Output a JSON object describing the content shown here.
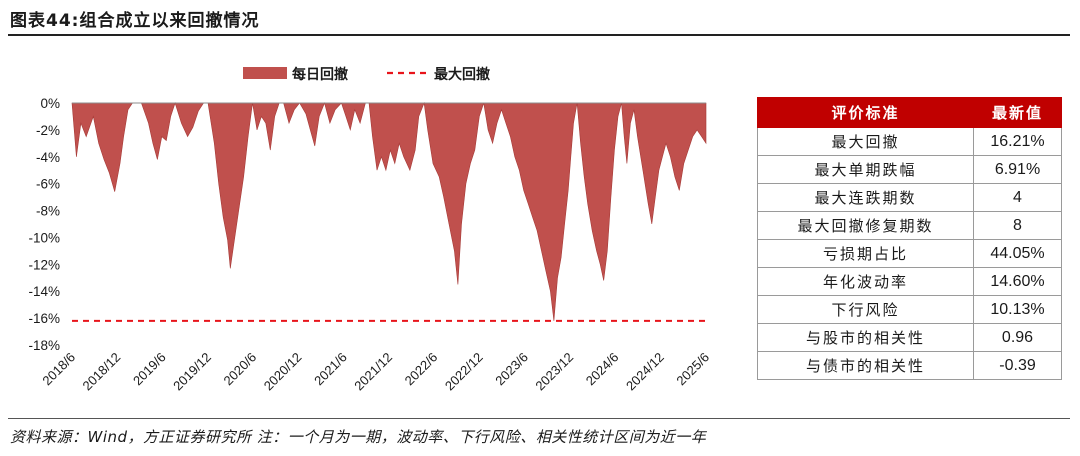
{
  "figure": {
    "title": "图表44:组合成立以来回撤情况",
    "source": "资料来源：Wind，方正证券研究所 注：一个月为一期，波动率、下行风险、相关性统计区间为近一年"
  },
  "chart_data": {
    "type": "area",
    "legend_position": "top",
    "series": [
      {
        "name": "每日回撤",
        "kind": "area",
        "color": "#c0504d"
      },
      {
        "name": "最大回撤",
        "kind": "dashed-line",
        "color": "#e8141b",
        "value": -16.21
      }
    ],
    "x_ticks": [
      "2018/6",
      "2018/12",
      "2019/6",
      "2019/12",
      "2020/6",
      "2020/12",
      "2021/6",
      "2021/12",
      "2022/6",
      "2022/12",
      "2023/6",
      "2023/12",
      "2024/6",
      "2024/12",
      "2025/6"
    ],
    "y_ticks": [
      "0%",
      "-2%",
      "-4%",
      "-6%",
      "-8%",
      "-10%",
      "-12%",
      "-14%",
      "-16%",
      "-18%"
    ],
    "ylim": [
      -18,
      0
    ],
    "x_range": [
      2018.42,
      2025.55
    ],
    "drawdown_points": [
      [
        2018.42,
        0
      ],
      [
        2018.47,
        -4.0
      ],
      [
        2018.52,
        -1.5
      ],
      [
        2018.58,
        -2.5
      ],
      [
        2018.66,
        -1.0
      ],
      [
        2018.72,
        -3.0
      ],
      [
        2018.78,
        -4.2
      ],
      [
        2018.84,
        -5.2
      ],
      [
        2018.9,
        -6.6
      ],
      [
        2018.96,
        -4.5
      ],
      [
        2019.0,
        -2.5
      ],
      [
        2019.05,
        -0.5
      ],
      [
        2019.1,
        0
      ],
      [
        2019.2,
        0
      ],
      [
        2019.28,
        -1.5
      ],
      [
        2019.33,
        -3.0
      ],
      [
        2019.38,
        -4.2
      ],
      [
        2019.43,
        -2.5
      ],
      [
        2019.48,
        -2.8
      ],
      [
        2019.53,
        -1.0
      ],
      [
        2019.58,
        0
      ],
      [
        2019.65,
        -1.5
      ],
      [
        2019.72,
        -2.5
      ],
      [
        2019.78,
        -1.8
      ],
      [
        2019.84,
        -0.6
      ],
      [
        2019.9,
        0
      ],
      [
        2019.95,
        0
      ],
      [
        2020.02,
        -3.0
      ],
      [
        2020.07,
        -6.0
      ],
      [
        2020.12,
        -8.5
      ],
      [
        2020.17,
        -10.2
      ],
      [
        2020.2,
        -12.3
      ],
      [
        2020.24,
        -10.5
      ],
      [
        2020.29,
        -8.2
      ],
      [
        2020.35,
        -5.5
      ],
      [
        2020.4,
        -2.5
      ],
      [
        2020.45,
        0
      ],
      [
        2020.5,
        -2.0
      ],
      [
        2020.55,
        -1.0
      ],
      [
        2020.6,
        -1.5
      ],
      [
        2020.65,
        -3.5
      ],
      [
        2020.7,
        -1.0
      ],
      [
        2020.75,
        0
      ],
      [
        2020.8,
        0
      ],
      [
        2020.86,
        -1.5
      ],
      [
        2020.92,
        -0.5
      ],
      [
        2020.98,
        0
      ],
      [
        2021.05,
        -0.8
      ],
      [
        2021.1,
        -2.0
      ],
      [
        2021.15,
        -3.2
      ],
      [
        2021.2,
        -1.0
      ],
      [
        2021.26,
        0
      ],
      [
        2021.32,
        -1.5
      ],
      [
        2021.38,
        -0.5
      ],
      [
        2021.45,
        0
      ],
      [
        2021.5,
        -1.0
      ],
      [
        2021.55,
        -2.0
      ],
      [
        2021.6,
        -0.5
      ],
      [
        2021.66,
        -1.5
      ],
      [
        2021.72,
        0
      ],
      [
        2021.76,
        0
      ],
      [
        2021.8,
        -2.5
      ],
      [
        2021.85,
        -5.0
      ],
      [
        2021.9,
        -4.0
      ],
      [
        2021.95,
        -5.0
      ],
      [
        2022.0,
        -3.5
      ],
      [
        2022.05,
        -4.5
      ],
      [
        2022.1,
        -3.0
      ],
      [
        2022.15,
        -4.0
      ],
      [
        2022.22,
        -5.0
      ],
      [
        2022.28,
        -3.5
      ],
      [
        2022.32,
        -1.0
      ],
      [
        2022.38,
        0
      ],
      [
        2022.42,
        -2.0
      ],
      [
        2022.48,
        -4.5
      ],
      [
        2022.55,
        -5.5
      ],
      [
        2022.6,
        -7.0
      ],
      [
        2022.66,
        -9.0
      ],
      [
        2022.72,
        -11.0
      ],
      [
        2022.76,
        -13.5
      ],
      [
        2022.8,
        -9.0
      ],
      [
        2022.85,
        -6.0
      ],
      [
        2022.9,
        -4.5
      ],
      [
        2022.95,
        -3.5
      ],
      [
        2023.0,
        -1.0
      ],
      [
        2023.05,
        0
      ],
      [
        2023.1,
        -2.0
      ],
      [
        2023.15,
        -3.0
      ],
      [
        2023.2,
        -1.5
      ],
      [
        2023.25,
        -0.5
      ],
      [
        2023.3,
        -1.5
      ],
      [
        2023.35,
        -2.5
      ],
      [
        2023.4,
        -4.0
      ],
      [
        2023.45,
        -5.0
      ],
      [
        2023.5,
        -6.5
      ],
      [
        2023.55,
        -7.5
      ],
      [
        2023.6,
        -8.5
      ],
      [
        2023.65,
        -9.5
      ],
      [
        2023.7,
        -11.0
      ],
      [
        2023.75,
        -12.5
      ],
      [
        2023.8,
        -14.0
      ],
      [
        2023.84,
        -16.2
      ],
      [
        2023.88,
        -13.0
      ],
      [
        2023.92,
        -11.5
      ],
      [
        2023.96,
        -9.0
      ],
      [
        2024.0,
        -6.5
      ],
      [
        2024.03,
        -4.0
      ],
      [
        2024.06,
        -1.5
      ],
      [
        2024.1,
        0
      ],
      [
        2024.14,
        -3.0
      ],
      [
        2024.18,
        -5.5
      ],
      [
        2024.22,
        -7.5
      ],
      [
        2024.27,
        -9.5
      ],
      [
        2024.32,
        -11.0
      ],
      [
        2024.36,
        -12.0
      ],
      [
        2024.4,
        -13.2
      ],
      [
        2024.44,
        -11.0
      ],
      [
        2024.48,
        -7.0
      ],
      [
        2024.52,
        -3.5
      ],
      [
        2024.56,
        -1.0
      ],
      [
        2024.6,
        0
      ],
      [
        2024.63,
        -2.5
      ],
      [
        2024.66,
        -4.5
      ],
      [
        2024.7,
        -1.5
      ],
      [
        2024.74,
        -0.5
      ],
      [
        2024.78,
        -2.5
      ],
      [
        2024.84,
        -5.0
      ],
      [
        2024.9,
        -7.5
      ],
      [
        2024.94,
        -9.0
      ],
      [
        2024.98,
        -7.0
      ],
      [
        2025.02,
        -5.0
      ],
      [
        2025.06,
        -4.0
      ],
      [
        2025.1,
        -3.0
      ],
      [
        2025.15,
        -4.0
      ],
      [
        2025.2,
        -5.5
      ],
      [
        2025.25,
        -6.5
      ],
      [
        2025.3,
        -4.5
      ],
      [
        2025.35,
        -3.5
      ],
      [
        2025.4,
        -2.5
      ],
      [
        2025.45,
        -2.0
      ],
      [
        2025.5,
        -2.5
      ],
      [
        2025.55,
        -3.0
      ]
    ]
  },
  "table": {
    "headers": [
      "评价标准",
      "最新值"
    ],
    "rows": [
      {
        "label": "最大回撤",
        "value": "16.21%"
      },
      {
        "label": "最大单期跌幅",
        "value": "6.91%"
      },
      {
        "label": "最大连跌期数",
        "value": "4"
      },
      {
        "label": "最大回撤修复期数",
        "value": "8"
      },
      {
        "label": "亏损期占比",
        "value": "44.05%"
      },
      {
        "label": "年化波动率",
        "value": "14.60%"
      },
      {
        "label": "下行风险",
        "value": "10.13%"
      },
      {
        "label": "与股市的相关性",
        "value": "0.96"
      },
      {
        "label": "与债市的相关性",
        "value": "-0.39"
      }
    ]
  }
}
